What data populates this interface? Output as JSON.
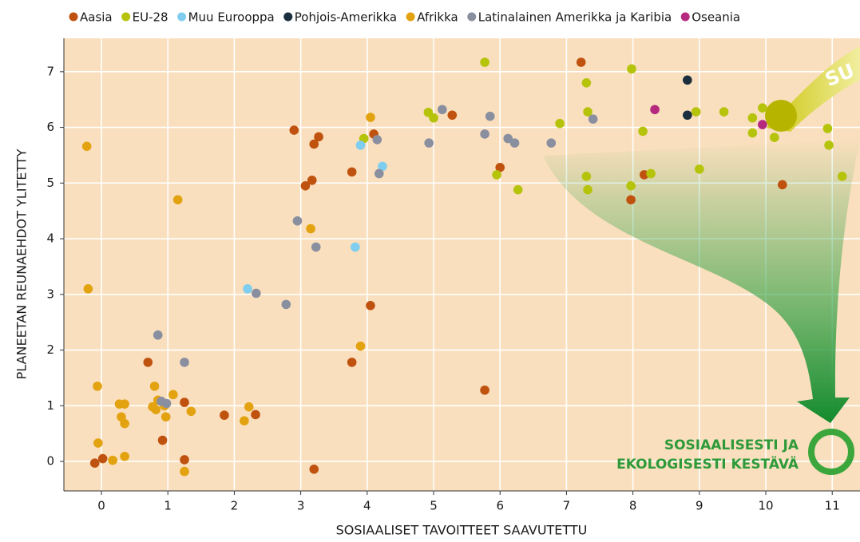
{
  "chart_data": {
    "type": "scatter",
    "x_label": "SOSIAALISET TAVOITTEET SAAVUTETTU",
    "y_label": "PLANEETAN REUNAEHDOT YLITETTY",
    "annotations": [
      "SOSIAALISESTI JA",
      "EKOLOGISESTI KESTÄVÄ",
      "SU"
    ],
    "xlim": [
      -0.565,
      11.418
    ],
    "ylim": [
      -0.53,
      7.6
    ],
    "xticks": [
      0,
      1,
      2,
      3,
      4,
      5,
      6,
      7,
      8,
      9,
      10,
      11
    ],
    "yticks": [
      0,
      1,
      2,
      3,
      4,
      5,
      6,
      7
    ],
    "grid": true,
    "legend": "top",
    "series": [
      {
        "name": "Aasia",
        "color": "#c0520f",
        "x": [
          -0.1,
          0.02,
          0.7,
          0.92,
          1.25,
          1.25,
          1.85,
          2.32,
          2.9,
          3.07,
          3.17,
          3.2,
          3.27,
          3.2,
          3.77,
          3.77,
          4.05,
          4.1,
          5.28,
          5.77,
          6.0,
          7.22,
          7.97,
          8.17,
          10.25
        ],
        "y": [
          -0.03,
          0.05,
          1.78,
          0.38,
          1.06,
          0.03,
          0.83,
          0.84,
          5.95,
          4.95,
          5.05,
          5.7,
          5.83,
          -0.14,
          5.2,
          1.78,
          2.8,
          5.88,
          6.22,
          1.28,
          5.28,
          7.17,
          4.7,
          5.15,
          4.97
        ]
      },
      {
        "name": "EU-28",
        "color": "#b5c30a",
        "x": [
          5.77,
          4.92,
          5.0,
          3.95,
          5.95,
          6.27,
          6.9,
          7.3,
          7.32,
          7.3,
          7.32,
          7.98,
          8.15,
          8.27,
          7.97,
          8.95,
          9.0,
          9.37,
          9.8,
          9.8,
          9.95,
          10.13,
          10.93,
          10.95,
          11.15
        ],
        "y": [
          7.17,
          6.27,
          6.17,
          5.8,
          5.15,
          4.88,
          6.07,
          6.8,
          6.28,
          5.12,
          4.88,
          7.05,
          5.93,
          5.17,
          4.95,
          6.28,
          5.25,
          6.28,
          6.17,
          5.9,
          6.35,
          5.82,
          5.98,
          5.68,
          5.12
        ]
      },
      {
        "name": "Muu Eurooppa",
        "color": "#7fcdef",
        "x": [
          3.9,
          4.23,
          3.82,
          2.2
        ],
        "y": [
          5.68,
          5.3,
          3.85,
          3.1
        ]
      },
      {
        "name": "Pohjois-Amerikka",
        "color": "#1a2e3d",
        "x": [
          8.82,
          8.82
        ],
        "y": [
          6.85,
          6.22
        ]
      },
      {
        "name": "Afrikka",
        "color": "#e3a20f",
        "x": [
          -0.22,
          -0.2,
          -0.06,
          -0.05,
          0.17,
          0.27,
          0.35,
          0.3,
          0.35,
          0.35,
          0.77,
          0.8,
          0.82,
          0.85,
          0.95,
          0.97,
          1.08,
          1.15,
          1.25,
          1.35,
          2.15,
          2.22,
          3.15,
          3.9,
          4.05
        ],
        "y": [
          5.66,
          3.1,
          1.35,
          0.33,
          0.02,
          1.03,
          1.03,
          0.8,
          0.68,
          0.09,
          0.98,
          1.35,
          0.93,
          1.1,
          1.0,
          0.8,
          1.2,
          4.7,
          -0.18,
          0.9,
          0.73,
          0.98,
          4.18,
          2.07,
          6.18
        ]
      },
      {
        "name": "Latinalainen Amerikka ja Karibia",
        "color": "#8a8fa0",
        "x": [
          0.85,
          0.9,
          0.98,
          1.25,
          2.33,
          2.78,
          2.95,
          3.23,
          4.15,
          4.18,
          4.93,
          5.13,
          5.77,
          5.85,
          6.12,
          6.22,
          6.77,
          7.4
        ],
        "y": [
          2.27,
          1.08,
          1.04,
          1.78,
          3.02,
          2.82,
          4.32,
          3.85,
          5.78,
          5.17,
          5.72,
          6.32,
          5.88,
          6.2,
          5.8,
          5.72,
          5.72,
          6.15
        ]
      },
      {
        "name": "Oseania",
        "color": "#b5297f",
        "x": [
          8.33,
          9.95
        ],
        "y": [
          6.32,
          6.05
        ]
      }
    ]
  }
}
